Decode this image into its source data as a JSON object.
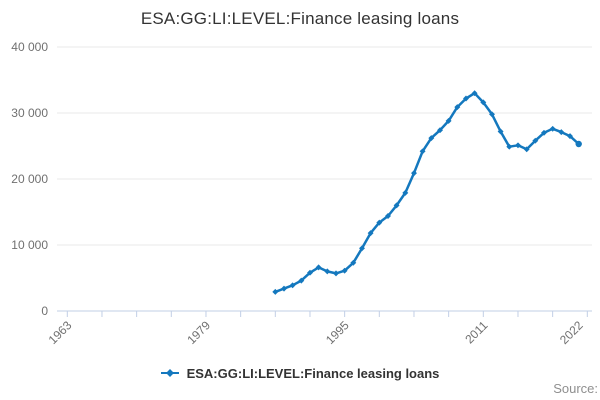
{
  "title": "ESA:GG:LI:LEVEL:Finance leasing loans",
  "legend": {
    "label": "ESA:GG:LI:LEVEL:Finance leasing loans"
  },
  "source_label": "Source:",
  "colors": {
    "line": "#1478be",
    "grid": "#e9e9e9",
    "axis": "#c2cfe6",
    "tick_label": "#707070",
    "title_text": "#333333",
    "legend_text": "#333333",
    "source_text": "#8f8f8f"
  },
  "chart_data": {
    "type": "line",
    "title": "ESA:GG:LI:LEVEL:Finance leasing loans",
    "xlabel": "",
    "ylabel": "",
    "ylim": [
      0,
      40000
    ],
    "xlim": [
      1962,
      2023.5
    ],
    "grid": "horizontal",
    "legend_position": "bottom",
    "y_ticks": [
      {
        "value": 0,
        "label": "0"
      },
      {
        "value": 10000,
        "label": "10 000"
      },
      {
        "value": 20000,
        "label": "20 000"
      },
      {
        "value": 30000,
        "label": "30 000"
      },
      {
        "value": 40000,
        "label": "40 000"
      }
    ],
    "x_tick_years": [
      1963,
      1967,
      1971,
      1975,
      1979,
      1983,
      1987,
      1991,
      1995,
      1999,
      2003,
      2007,
      2011,
      2015,
      2019,
      2023
    ],
    "x_label_years": [
      1963,
      1979,
      1995,
      2011,
      2022
    ],
    "series": [
      {
        "name": "ESA:GG:LI:LEVEL:Finance leasing loans",
        "x": [
          1987,
          1988,
          1989,
          1990,
          1991,
          1992,
          1993,
          1994,
          1995,
          1996,
          1997,
          1998,
          1999,
          2000,
          2001,
          2002,
          2003,
          2004,
          2005,
          2006,
          2007,
          2008,
          2009,
          2010,
          2011,
          2012,
          2013,
          2014,
          2015,
          2016,
          2017,
          2018,
          2019,
          2020,
          2021,
          2022
        ],
        "values": [
          2900,
          3400,
          3900,
          4600,
          5800,
          6600,
          6000,
          5700,
          6100,
          7300,
          9500,
          11800,
          13400,
          14400,
          16000,
          17900,
          20900,
          24200,
          26200,
          27400,
          28800,
          30900,
          32200,
          33000,
          31600,
          29800,
          27200,
          24900,
          25100,
          24500,
          25800,
          27000,
          27600,
          27100,
          26500,
          25300
        ]
      }
    ]
  }
}
